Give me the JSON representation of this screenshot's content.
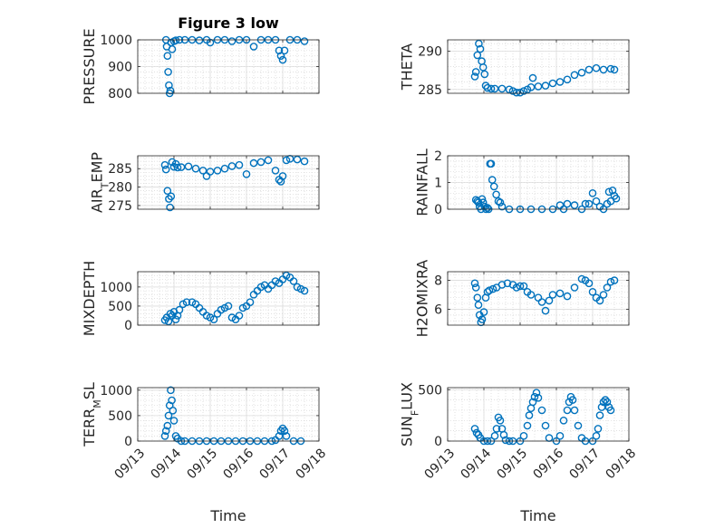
{
  "figure_title": "Figure 3 low",
  "marker_color": "#0072BD",
  "x_ticks": [
    "09/13",
    "09/14",
    "09/15",
    "09/16",
    "09/17",
    "09/18"
  ],
  "x_label": "Time",
  "chart_data": [
    {
      "type": "scatter",
      "panel": "pressure",
      "ylabel": "PRESSURE",
      "ylim": [
        800,
        1000
      ],
      "yticks": [
        800,
        900,
        1000
      ],
      "xlim": [
        13,
        18
      ],
      "grid": true,
      "title": "Figure 3 low",
      "x": [
        13.78,
        13.8,
        13.82,
        13.84,
        13.86,
        13.88,
        13.9,
        13.92,
        13.95,
        14.0,
        14.05,
        14.15,
        14.3,
        14.5,
        14.7,
        14.9,
        15.0,
        15.2,
        15.4,
        15.6,
        15.8,
        16.0,
        16.2,
        16.4,
        16.6,
        16.8,
        16.9,
        16.95,
        17.0,
        17.05,
        17.2,
        17.4,
        17.6
      ],
      "y": [
        1000,
        975,
        940,
        880,
        830,
        800,
        810,
        990,
        965,
        995,
        998,
        1000,
        1000,
        1000,
        998,
        1000,
        990,
        1000,
        1000,
        995,
        1000,
        1000,
        975,
        1000,
        1000,
        1000,
        960,
        940,
        925,
        960,
        1000,
        1000,
        995
      ]
    },
    {
      "type": "scatter",
      "panel": "theta",
      "ylabel": "THETA",
      "ylim": [
        284.5,
        291.5
      ],
      "yticks": [
        285,
        290
      ],
      "xlim": [
        13,
        18
      ],
      "grid": true,
      "x": [
        13.75,
        13.78,
        13.82,
        13.86,
        13.9,
        13.94,
        13.98,
        14.02,
        14.05,
        14.1,
        14.2,
        14.3,
        14.5,
        14.7,
        14.8,
        14.9,
        15.0,
        15.1,
        15.2,
        15.3,
        15.35,
        15.5,
        15.7,
        15.9,
        16.1,
        16.3,
        16.5,
        16.7,
        16.9,
        17.1,
        17.3,
        17.5,
        17.6
      ],
      "y": [
        286.7,
        287.3,
        289.5,
        291.0,
        290.3,
        288.7,
        287.9,
        287.0,
        285.5,
        285.2,
        285.1,
        285.1,
        285.1,
        285.0,
        284.8,
        284.6,
        284.6,
        284.8,
        285.0,
        285.3,
        286.5,
        285.4,
        285.5,
        285.8,
        286.0,
        286.3,
        286.9,
        287.2,
        287.6,
        287.8,
        287.6,
        287.7,
        287.6
      ]
    },
    {
      "type": "scatter",
      "panel": "air_temp",
      "ylabel": "AIR_TEMP",
      "ylim": [
        274,
        288.5
      ],
      "yticks": [
        275,
        280,
        285
      ],
      "xlim": [
        13,
        18
      ],
      "grid": true,
      "x": [
        13.75,
        13.78,
        13.82,
        13.86,
        13.89,
        13.92,
        13.95,
        14.0,
        14.05,
        14.1,
        14.2,
        14.4,
        14.6,
        14.8,
        14.9,
        15.0,
        15.2,
        15.4,
        15.6,
        15.8,
        16.0,
        16.2,
        16.4,
        16.6,
        16.8,
        16.9,
        16.95,
        17.0,
        17.1,
        17.2,
        17.4,
        17.6
      ],
      "y": [
        286.0,
        284.8,
        279.0,
        276.8,
        274.5,
        277.5,
        286.8,
        285.5,
        286.3,
        285.3,
        285.4,
        285.6,
        285.0,
        284.5,
        283.0,
        284.2,
        284.5,
        285.0,
        285.7,
        286.0,
        283.5,
        286.5,
        286.8,
        287.3,
        284.5,
        282.0,
        281.5,
        283.0,
        287.3,
        287.7,
        287.5,
        287.0
      ]
    },
    {
      "type": "scatter",
      "panel": "rainfall",
      "ylabel": "RAINFALL",
      "ylim": [
        0,
        2
      ],
      "yticks": [
        0,
        1,
        2
      ],
      "xlim": [
        13,
        18
      ],
      "grid": true,
      "x": [
        13.78,
        13.82,
        13.85,
        13.88,
        13.92,
        13.95,
        13.98,
        14.02,
        14.06,
        14.1,
        14.13,
        14.17,
        14.2,
        14.23,
        14.28,
        14.34,
        14.4,
        14.45,
        14.5,
        14.7,
        15.0,
        15.3,
        15.6,
        15.9,
        16.1,
        16.2,
        16.3,
        16.5,
        16.7,
        16.8,
        16.9,
        17.0,
        17.1,
        17.2,
        17.3,
        17.4,
        17.45,
        17.5,
        17.55,
        17.6,
        17.65
      ],
      "y": [
        0.35,
        0.3,
        0.25,
        0.1,
        0.0,
        0.38,
        0.25,
        0.1,
        0.0,
        0.05,
        0.0,
        1.7,
        1.7,
        1.1,
        0.85,
        0.55,
        0.3,
        0.25,
        0.1,
        0.0,
        0.0,
        0.0,
        0.0,
        0.0,
        0.15,
        0.0,
        0.2,
        0.15,
        0.0,
        0.2,
        0.2,
        0.6,
        0.3,
        0.1,
        0.0,
        0.2,
        0.65,
        0.3,
        0.7,
        0.5,
        0.4
      ]
    },
    {
      "type": "scatter",
      "panel": "mixdepth",
      "ylabel": "MIXDEPTH",
      "ylim": [
        0,
        1400
      ],
      "yticks": [
        0,
        500,
        1000
      ],
      "xlim": [
        13,
        18
      ],
      "grid": true,
      "x": [
        13.75,
        13.8,
        13.85,
        13.9,
        13.95,
        14.0,
        14.05,
        14.1,
        14.15,
        14.25,
        14.35,
        14.5,
        14.6,
        14.7,
        14.8,
        14.9,
        15.0,
        15.1,
        15.2,
        15.3,
        15.4,
        15.5,
        15.6,
        15.7,
        15.8,
        15.9,
        16.0,
        16.1,
        16.2,
        16.3,
        16.4,
        16.5,
        16.6,
        16.7,
        16.8,
        16.9,
        17.0,
        17.1,
        17.2,
        17.3,
        17.4,
        17.5,
        17.6
      ],
      "y": [
        130,
        200,
        100,
        300,
        250,
        350,
        150,
        250,
        400,
        550,
        600,
        600,
        550,
        450,
        350,
        250,
        200,
        150,
        300,
        400,
        450,
        500,
        200,
        150,
        250,
        450,
        500,
        600,
        800,
        900,
        1000,
        1050,
        950,
        1050,
        1150,
        1100,
        1200,
        1300,
        1250,
        1150,
        1000,
        950,
        900
      ]
    },
    {
      "type": "scatter",
      "panel": "h2omixra",
      "ylabel": "H2OMIXRA",
      "ylim": [
        4.9,
        8.6
      ],
      "yticks": [
        6,
        8
      ],
      "xlim": [
        13,
        18
      ],
      "grid": true,
      "x": [
        13.75,
        13.78,
        13.82,
        13.85,
        13.88,
        13.92,
        13.95,
        14.0,
        14.05,
        14.1,
        14.15,
        14.25,
        14.35,
        14.5,
        14.65,
        14.8,
        14.9,
        15.0,
        15.1,
        15.2,
        15.3,
        15.5,
        15.6,
        15.7,
        15.8,
        15.9,
        16.1,
        16.3,
        16.5,
        16.7,
        16.8,
        16.9,
        17.0,
        17.1,
        17.2,
        17.3,
        17.4,
        17.5,
        17.6
      ],
      "y": [
        7.8,
        7.5,
        6.8,
        6.3,
        5.6,
        5.1,
        5.3,
        5.8,
        6.8,
        7.2,
        7.3,
        7.4,
        7.5,
        7.7,
        7.8,
        7.7,
        7.5,
        7.6,
        7.6,
        7.2,
        7.0,
        6.8,
        6.5,
        5.9,
        6.6,
        7.0,
        7.1,
        6.9,
        7.5,
        8.1,
        8.0,
        7.8,
        7.2,
        6.8,
        6.6,
        7.0,
        7.5,
        7.9,
        8.0
      ]
    },
    {
      "type": "scatter",
      "panel": "terr_msl",
      "ylabel": "TERR_MSL",
      "ylim": [
        0,
        1050
      ],
      "yticks": [
        0,
        500,
        1000
      ],
      "xlim": [
        13,
        18
      ],
      "grid": true,
      "x": [
        13.75,
        13.78,
        13.82,
        13.85,
        13.88,
        13.91,
        13.94,
        13.97,
        14.0,
        14.05,
        14.1,
        14.2,
        14.3,
        14.5,
        14.7,
        14.9,
        15.1,
        15.3,
        15.5,
        15.7,
        15.9,
        16.1,
        16.3,
        16.5,
        16.7,
        16.8,
        16.9,
        16.95,
        17.0,
        17.05,
        17.1,
        17.3,
        17.5
      ],
      "y": [
        100,
        200,
        300,
        500,
        700,
        1000,
        800,
        600,
        400,
        100,
        50,
        0,
        0,
        0,
        0,
        0,
        0,
        0,
        0,
        0,
        0,
        0,
        0,
        0,
        0,
        20,
        100,
        200,
        250,
        200,
        100,
        0,
        0
      ]
    },
    {
      "type": "scatter",
      "panel": "sun_flux",
      "ylabel": "SUN_FLUX",
      "ylim": [
        0,
        520
      ],
      "yticks": [
        0,
        500
      ],
      "xlim": [
        13,
        18
      ],
      "grid": true,
      "x": [
        13.75,
        13.8,
        13.85,
        13.9,
        14.0,
        14.1,
        14.2,
        14.3,
        14.35,
        14.4,
        14.45,
        14.5,
        14.55,
        14.6,
        14.7,
        14.8,
        15.0,
        15.1,
        15.2,
        15.25,
        15.3,
        15.35,
        15.4,
        15.45,
        15.5,
        15.6,
        15.7,
        15.8,
        16.0,
        16.1,
        16.2,
        16.3,
        16.35,
        16.4,
        16.45,
        16.5,
        16.6,
        16.7,
        16.8,
        17.0,
        17.1,
        17.15,
        17.2,
        17.25,
        17.3,
        17.35,
        17.4,
        17.45,
        17.5
      ],
      "y": [
        120,
        80,
        60,
        30,
        0,
        0,
        0,
        50,
        120,
        230,
        200,
        120,
        60,
        10,
        0,
        0,
        0,
        50,
        150,
        250,
        320,
        380,
        430,
        470,
        420,
        300,
        150,
        30,
        0,
        50,
        200,
        300,
        380,
        430,
        400,
        300,
        150,
        30,
        0,
        0,
        50,
        120,
        250,
        330,
        380,
        400,
        380,
        330,
        300
      ]
    }
  ]
}
